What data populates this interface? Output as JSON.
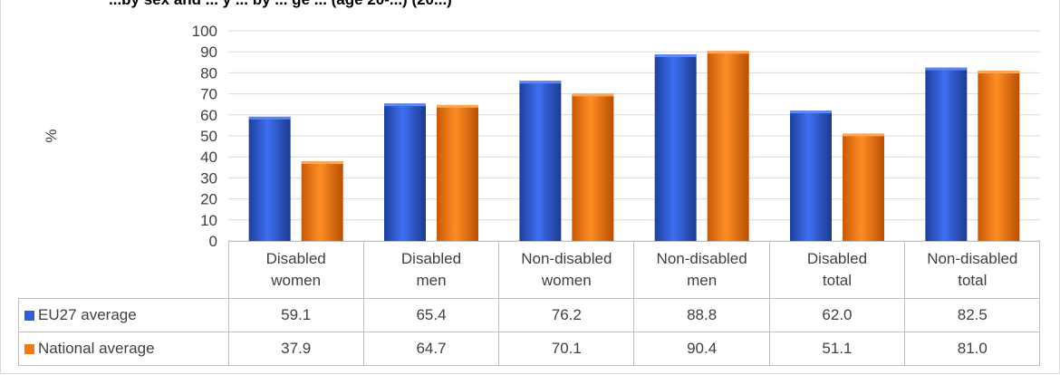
{
  "title": "...by sex and ... y  ... by ... ge ... (age 20-...) (20...)",
  "chart_data": {
    "type": "bar",
    "ylabel": "%",
    "ylim": [
      0,
      100
    ],
    "yticks": [
      0,
      10,
      20,
      30,
      40,
      50,
      60,
      70,
      80,
      90,
      100
    ],
    "grid": true,
    "categories": [
      [
        "Disabled",
        "women"
      ],
      [
        "Disabled",
        "men"
      ],
      [
        "Non-disabled",
        "women"
      ],
      [
        "Non-disabled",
        "men"
      ],
      [
        "Disabled",
        "total"
      ],
      [
        "Non-disabled",
        "total"
      ]
    ],
    "series": [
      {
        "name": "EU27 average",
        "color": "#2e5fd6",
        "values": [
          59.1,
          65.4,
          76.2,
          88.8,
          62.0,
          82.5
        ],
        "labels": [
          "59.1",
          "65.4",
          "76.2",
          "88.8",
          "62.0",
          "82.5"
        ]
      },
      {
        "name": "National average",
        "color": "#f07a14",
        "values": [
          37.9,
          64.7,
          70.1,
          90.4,
          51.1,
          81.0
        ],
        "labels": [
          "37.9",
          "64.7",
          "70.1",
          "90.4",
          "51.1",
          "81.0"
        ]
      }
    ],
    "legend": "data-table"
  }
}
